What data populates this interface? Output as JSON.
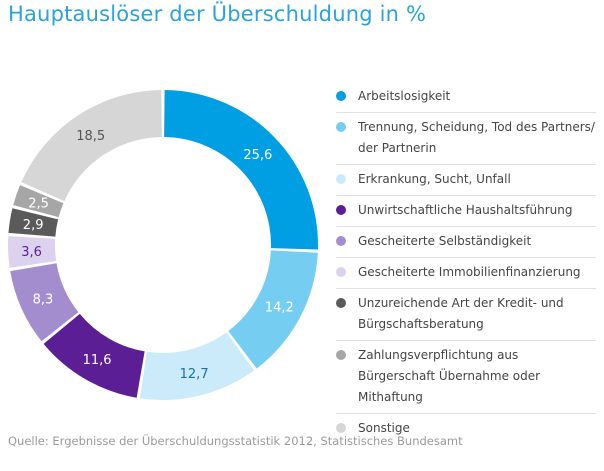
{
  "title": "Hauptauslöser der Überschuldung in %",
  "source": "Quelle: Ergebnisse der Überschuldungsstatistik 2012, Statistisches Bundesamt",
  "chart_data": {
    "type": "pie",
    "title": "Hauptauslöser der Überschuldung in %",
    "unit": "%",
    "slices": [
      {
        "label": "Arbeitslosigkeit",
        "value": 25.6,
        "display": "25,6",
        "color": "#009fe3",
        "text_color": "#ffffff"
      },
      {
        "label": "Trennung, Scheidung, Tod des Partners/ der Partnerin",
        "value": 14.2,
        "display": "14,2",
        "color": "#76cdf2",
        "text_color": "#ffffff"
      },
      {
        "label": "Erkrankung, Sucht, Unfall",
        "value": 12.7,
        "display": "12,7",
        "color": "#cbebfa",
        "text_color": "#1b6fa3"
      },
      {
        "label": "Unwirtschaftliche Haushaltsführung",
        "value": 11.6,
        "display": "11,6",
        "color": "#5b1e94",
        "text_color": "#ffffff"
      },
      {
        "label": "Gescheiterte Selbständigkeit",
        "value": 8.3,
        "display": "8,3",
        "color": "#a48dce",
        "text_color": "#ffffff"
      },
      {
        "label": "Gescheiterte Immobilienfinanzierung",
        "value": 3.6,
        "display": "3,6",
        "color": "#dcd2ee",
        "text_color": "#5b1e94"
      },
      {
        "label": "Unzureichende Art der Kredit- und Bürgschaftsberatung",
        "value": 2.9,
        "display": "2,9",
        "color": "#5a5a5a",
        "text_color": "#ffffff"
      },
      {
        "label": "Zahlungsverpflichtung aus Bürgerschaft Übernahme oder Mithaftung",
        "value": 2.5,
        "display": "2,5",
        "color": "#a6a6a6",
        "text_color": "#ffffff"
      },
      {
        "label": "Sonstige",
        "value": 18.5,
        "display": "18,5",
        "color": "#d6d6d6",
        "text_color": "#555555"
      }
    ],
    "legend_position": "right"
  }
}
